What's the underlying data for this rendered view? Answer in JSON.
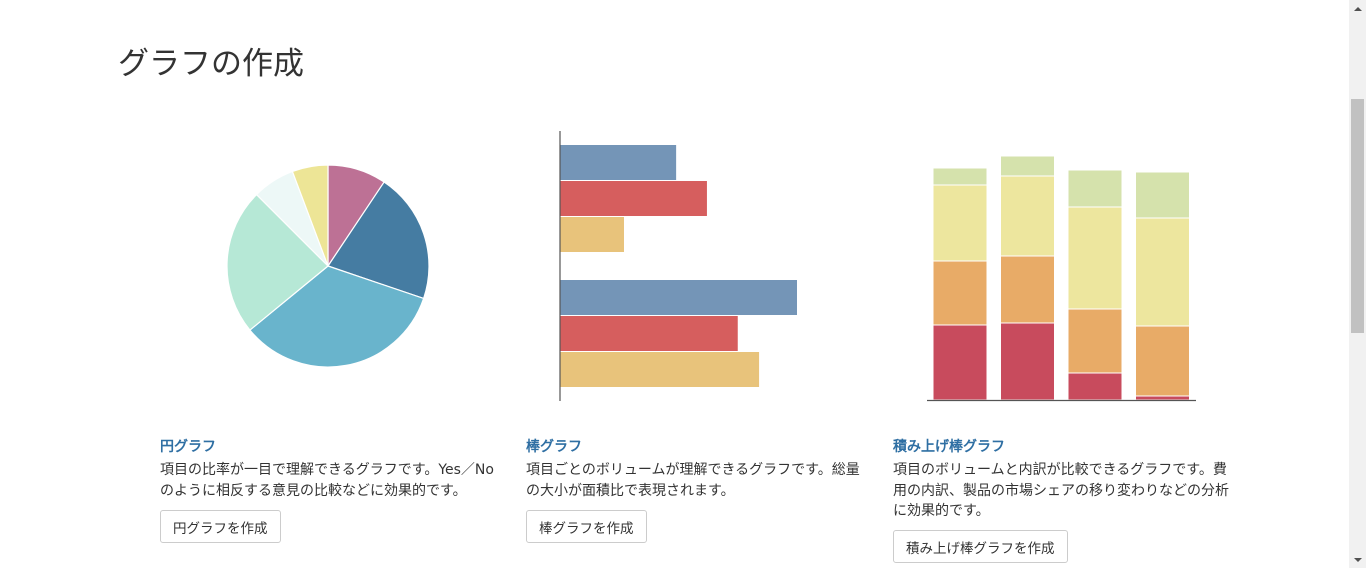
{
  "page": {
    "title": "グラフの作成"
  },
  "cards": [
    {
      "title": "円グラフ",
      "description": "項目の比率が一目で理解できるグラフです。Yes／Noのように相反する意見の比較などに効果的です。",
      "button": "円グラフを作成",
      "illustration": {
        "type": "pie",
        "slices": [
          {
            "value": 9.0,
            "color": "#bd7195"
          },
          {
            "value": 20.0,
            "color": "#457ca2"
          },
          {
            "value": 32.5,
            "color": "#69b4cc"
          },
          {
            "value": 22.5,
            "color": "#b6e8d6"
          },
          {
            "value": 6.5,
            "color": "#edf8f7"
          },
          {
            "value": 5.5,
            "color": "#ede596"
          }
        ]
      }
    },
    {
      "title": "棒グラフ",
      "description": "項目ごとのボリュームが理解できるグラフです。総量の大小が面積比で表現されます。",
      "button": "棒グラフを作成",
      "illustration": {
        "type": "bar",
        "orientation": "horizontal",
        "groups": [
          {
            "values": [
              49,
              62,
              27
            ]
          },
          {
            "values": [
              100,
              75,
              84
            ]
          }
        ],
        "colors": [
          "#7495b7",
          "#d65e5e",
          "#e8c37b"
        ]
      }
    },
    {
      "title": "積み上げ棒グラフ",
      "description": "項目のボリュームと内訳が比較できるグラフです。費用の内訳、製品の市場シェアの移り変わりなどの分析に効果的です。",
      "button": "積み上げ棒グラフを作成",
      "illustration": {
        "type": "stacked-bar",
        "stacks": [
          [
            75,
            64,
            76,
            17
          ],
          [
            77,
            67,
            80,
            20
          ],
          [
            27,
            64,
            102,
            37
          ],
          [
            4,
            70,
            108,
            46
          ]
        ],
        "colors": [
          "#c84b5d",
          "#e8ab67",
          "#ede69e",
          "#d5e2ac"
        ]
      }
    }
  ]
}
